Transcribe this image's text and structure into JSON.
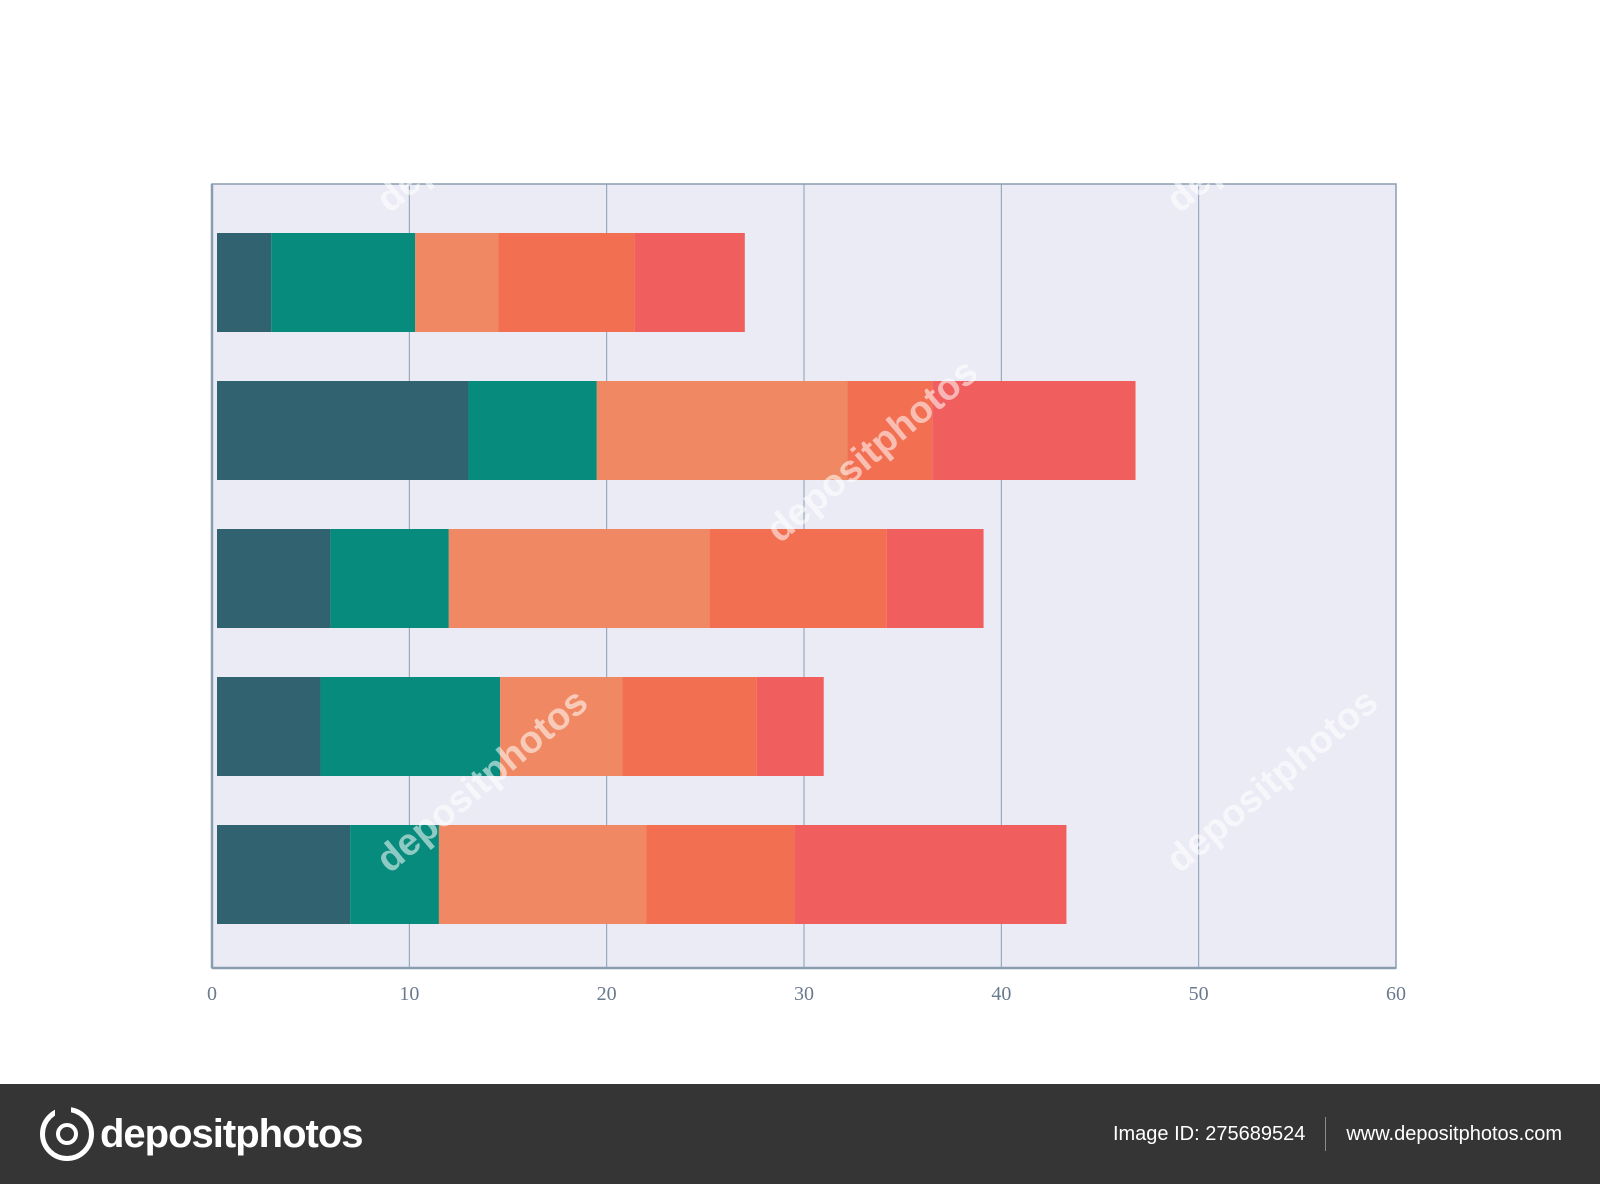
{
  "chart_data": {
    "type": "bar",
    "orientation": "horizontal",
    "stacked": true,
    "categories": [
      "",
      "",
      "",
      "",
      ""
    ],
    "xlim": [
      0,
      60
    ],
    "xticks": [
      "0",
      "10",
      "20",
      "30",
      "40",
      "50",
      "60"
    ],
    "grid": true,
    "series": [
      {
        "color": "#30636f",
        "values": [
          3,
          13,
          6,
          5.5,
          7
        ]
      },
      {
        "color": "#068b7d",
        "values": [
          7.3,
          6.5,
          6,
          9.1,
          4.5
        ]
      },
      {
        "color": "#f08963",
        "values": [
          4.2,
          12.7,
          13.2,
          6.2,
          10.5
        ]
      },
      {
        "color": "#f26f52",
        "values": [
          6.9,
          4.3,
          9,
          6.8,
          7.5
        ]
      },
      {
        "color": "#f05f5e",
        "values": [
          5.6,
          10.3,
          4.9,
          3.4,
          13.8
        ]
      }
    ],
    "plot_background": "#ebebf5",
    "axis_color": "#8a9db0"
  },
  "watermark": {
    "text": "depositphotos"
  },
  "footer": {
    "logo_text": "depositphotos",
    "image_id": "Image ID: 275689524",
    "site": "www.depositphotos.com"
  }
}
